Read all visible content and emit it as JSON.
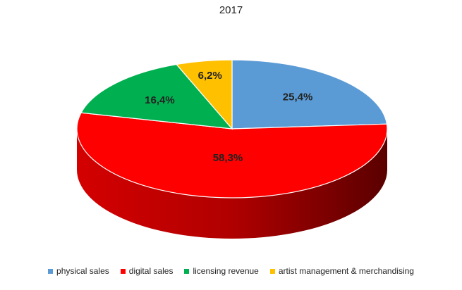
{
  "chart_data": {
    "type": "pie",
    "title": "2017",
    "categories": [
      "physical sales",
      "digital sales",
      "licensing revenue",
      "artist management & merchandising"
    ],
    "values": [
      25.4,
      58.3,
      16.4,
      6.2
    ],
    "labels": [
      "25,4%",
      "58,3%",
      "16,4%",
      "6,2%"
    ],
    "colors": [
      "#5b9bd5",
      "#ff0000",
      "#00b050",
      "#ffc000"
    ],
    "side_colors": [
      "#3a6fa0",
      "#a80000",
      "#007a38",
      "#b88a00"
    ],
    "legend_position": "bottom",
    "style": "3d"
  }
}
